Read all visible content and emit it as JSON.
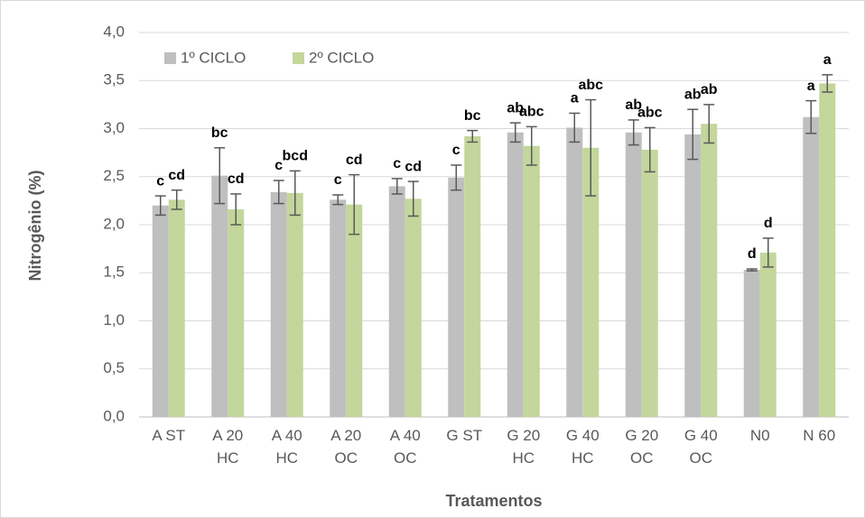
{
  "chart_data": {
    "type": "bar",
    "x_label": "Tratamentos",
    "y_label": "Nitrogênio (%)",
    "categories": [
      "A ST",
      "A 20 HC",
      "A 40 HC",
      "A 20 OC",
      "A 40 OC",
      "G ST",
      "G 20 HC",
      "G 40 HC",
      "G 20 OC",
      "G 40 OC",
      "N0",
      "N 60"
    ],
    "series": [
      {
        "name": "1º CICLO",
        "color": "#bfbfbf",
        "values": [
          2.2,
          2.51,
          2.34,
          2.26,
          2.4,
          2.49,
          2.96,
          3.01,
          2.96,
          2.94,
          1.53,
          3.12
        ],
        "errors": [
          0.1,
          0.29,
          0.12,
          0.05,
          0.08,
          0.13,
          0.1,
          0.15,
          0.13,
          0.26,
          0.01,
          0.17
        ],
        "letters": [
          "c",
          "bc",
          "c",
          "c",
          "c",
          "c",
          "ab",
          "a",
          "ab",
          "ab",
          "d",
          "a"
        ]
      },
      {
        "name": "2º CICLO",
        "color": "#c3d69b",
        "values": [
          2.26,
          2.16,
          2.33,
          2.21,
          2.27,
          2.92,
          2.82,
          2.8,
          2.78,
          3.05,
          1.71,
          3.47
        ],
        "errors": [
          0.1,
          0.16,
          0.23,
          0.31,
          0.18,
          0.06,
          0.2,
          0.5,
          0.23,
          0.2,
          0.15,
          0.09
        ],
        "letters": [
          "cd",
          "cd",
          "bcd",
          "cd",
          "cd",
          "bc",
          "abc",
          "abc",
          "abc",
          "ab",
          "d",
          "a"
        ]
      }
    ],
    "ylim": [
      0,
      4
    ],
    "yticks": [
      {
        "value": 0,
        "label": "0,0"
      },
      {
        "value": 0.5,
        "label": "0,5"
      },
      {
        "value": 1,
        "label": "1,0"
      },
      {
        "value": 1.5,
        "label": "1,5"
      },
      {
        "value": 2,
        "label": "2,0"
      },
      {
        "value": 2.5,
        "label": "2,5"
      },
      {
        "value": 3,
        "label": "3,0"
      },
      {
        "value": 3.5,
        "label": "3,5"
      },
      {
        "value": 4,
        "label": "4,0"
      }
    ],
    "grid": true,
    "legend": "top-left"
  }
}
